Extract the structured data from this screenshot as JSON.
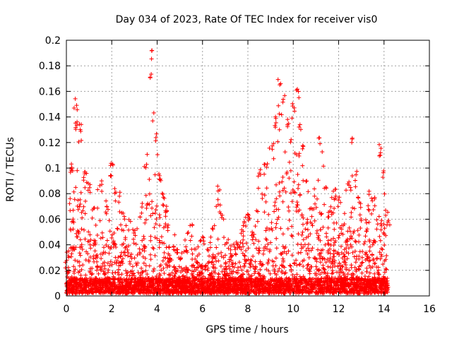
{
  "chart_data": {
    "type": "scatter",
    "title": "Day 034 of 2023, Rate Of TEC Index for receiver vis0",
    "xlabel": "GPS time / hours",
    "ylabel": "ROTI / TECUs",
    "xlim": [
      0,
      16
    ],
    "ylim": [
      0,
      0.2
    ],
    "xticks": [
      "0",
      "2",
      "4",
      "6",
      "8",
      "10",
      "12",
      "14",
      "16"
    ],
    "yticks": [
      "0",
      "0.02",
      "0.04",
      "0.06",
      "0.08",
      "0.1",
      "0.12",
      "0.14",
      "0.16",
      "0.18",
      "0.2"
    ],
    "grid": true,
    "marker": "+",
    "color": "#ff0000",
    "approx_envelope": {
      "x": [
        0.0,
        0.2,
        0.4,
        0.6,
        0.8,
        1.0,
        1.2,
        1.5,
        1.8,
        2.0,
        2.2,
        2.5,
        2.8,
        3.0,
        3.3,
        3.5,
        3.7,
        3.9,
        4.1,
        4.3,
        4.5,
        4.8,
        5.0,
        5.3,
        5.5,
        5.8,
        6.0,
        6.3,
        6.5,
        6.7,
        7.0,
        7.3,
        7.5,
        7.8,
        8.0,
        8.3,
        8.5,
        8.8,
        9.0,
        9.2,
        9.4,
        9.6,
        9.8,
        10.0,
        10.2,
        10.4,
        10.6,
        10.8,
        11.0,
        11.2,
        11.4,
        11.6,
        11.8,
        12.0,
        12.2,
        12.4,
        12.6,
        12.8,
        13.0,
        13.2,
        13.4,
        13.6,
        13.8,
        14.0,
        14.2
      ],
      "y": [
        0.03,
        0.1,
        0.155,
        0.135,
        0.1,
        0.09,
        0.07,
        0.095,
        0.07,
        0.11,
        0.09,
        0.07,
        0.06,
        0.05,
        0.065,
        0.11,
        0.195,
        0.13,
        0.1,
        0.08,
        0.06,
        0.045,
        0.03,
        0.045,
        0.065,
        0.04,
        0.05,
        0.04,
        0.06,
        0.09,
        0.05,
        0.04,
        0.045,
        0.06,
        0.065,
        0.05,
        0.1,
        0.105,
        0.12,
        0.14,
        0.175,
        0.16,
        0.14,
        0.15,
        0.165,
        0.12,
        0.09,
        0.07,
        0.085,
        0.125,
        0.09,
        0.07,
        0.085,
        0.08,
        0.06,
        0.09,
        0.127,
        0.1,
        0.07,
        0.06,
        0.085,
        0.08,
        0.12,
        0.1,
        0.06
      ]
    }
  }
}
